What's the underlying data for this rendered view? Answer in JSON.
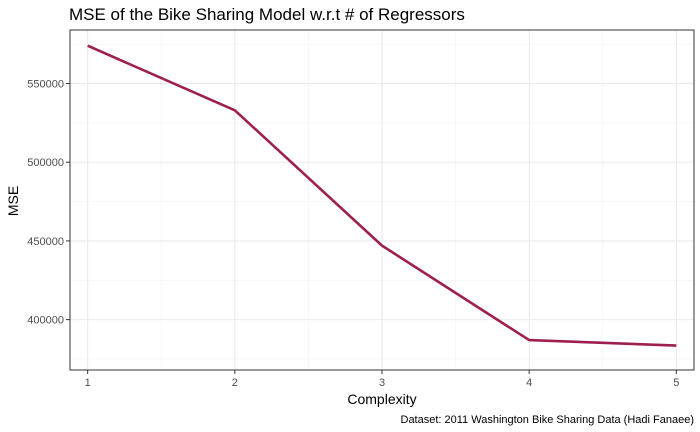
{
  "chart_data": {
    "type": "line",
    "title": "MSE of the Bike Sharing Model w.r.t # of Regressors",
    "xlabel": "Complexity",
    "ylabel": "MSE",
    "caption": "Dataset: 2011 Washington Bike Sharing Data (Hadi Fanaee)",
    "x": [
      1,
      2,
      3,
      4,
      5
    ],
    "series": [
      {
        "values": [
          574000,
          533000,
          447000,
          387000,
          383500
        ],
        "color": "#9e1f4e"
      }
    ],
    "xlim": [
      0.88,
      5.12
    ],
    "ylim": [
      368000,
      584000
    ],
    "xticks": [
      1,
      2,
      3,
      4,
      5
    ],
    "xtick_labels": [
      "1",
      "2",
      "3",
      "4",
      "5"
    ],
    "yticks": [
      400000,
      450000,
      500000,
      550000
    ],
    "ytick_labels": [
      "400000",
      "450000",
      "500000",
      "550000"
    ],
    "grid": true,
    "theme": "bw"
  }
}
